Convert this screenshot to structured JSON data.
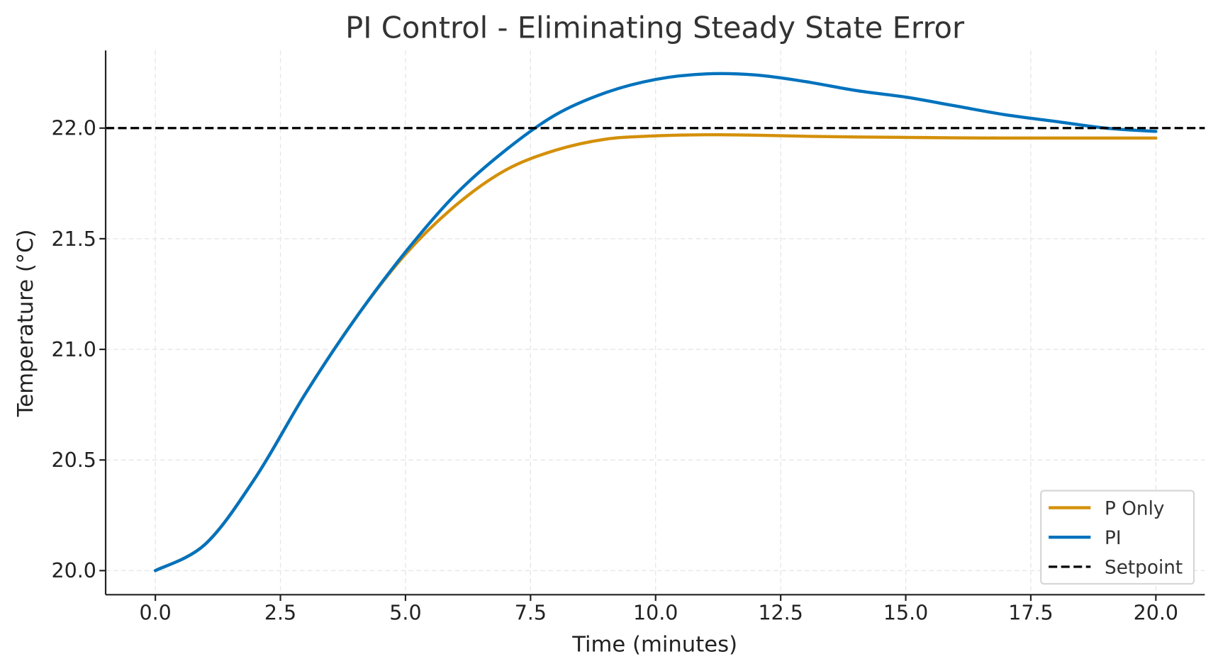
{
  "chart_data": {
    "type": "line",
    "title": "PI Control - Eliminating Steady State Error",
    "xlabel": "Time (minutes)",
    "ylabel": "Temperature (°C)",
    "xlim": [
      -1,
      21
    ],
    "ylim": [
      19.9,
      22.35
    ],
    "xticks": [
      "0.0",
      "2.5",
      "5.0",
      "7.5",
      "10.0",
      "12.5",
      "15.0",
      "17.5",
      "20.0"
    ],
    "yticks": [
      "20.0",
      "20.5",
      "21.0",
      "21.5",
      "22.0"
    ],
    "grid": true,
    "legend_position": "lower-right",
    "x": [
      0,
      1,
      2,
      3,
      4,
      5,
      6,
      7,
      8,
      9,
      10,
      11,
      12,
      13,
      14,
      15,
      16,
      17,
      18,
      19,
      20
    ],
    "series": [
      {
        "name": "P Only",
        "color": "#D4900A",
        "style": "solid",
        "values": [
          20.0,
          20.12,
          20.42,
          20.8,
          21.14,
          21.43,
          21.65,
          21.81,
          21.9,
          21.95,
          21.965,
          21.97,
          21.968,
          21.963,
          21.96,
          21.958,
          21.956,
          21.955,
          21.955,
          21.955,
          21.955
        ]
      },
      {
        "name": "PI",
        "color": "#0072BD",
        "style": "solid",
        "values": [
          20.0,
          20.12,
          20.42,
          20.8,
          21.14,
          21.44,
          21.7,
          21.9,
          22.06,
          22.16,
          22.22,
          22.245,
          22.24,
          22.21,
          22.17,
          22.14,
          22.1,
          22.06,
          22.03,
          22.0,
          21.985
        ]
      },
      {
        "name": "Setpoint",
        "color": "#000000",
        "style": "dashed",
        "constant": 22.0
      }
    ]
  }
}
